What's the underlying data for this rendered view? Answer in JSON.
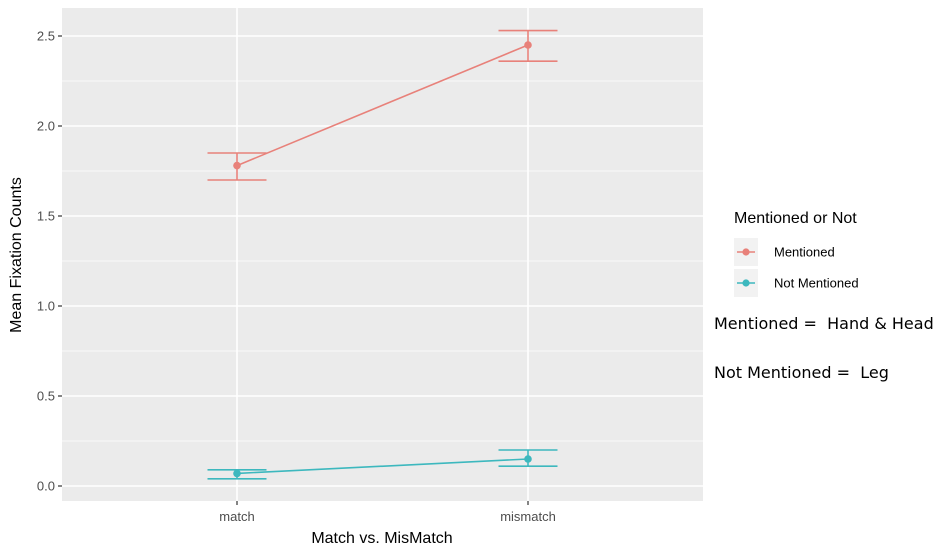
{
  "chart_data": {
    "type": "line",
    "title": "",
    "xlabel": "Match vs. MisMatch",
    "ylabel": "Mean Fixation Counts",
    "categories": [
      "match",
      "mismatch"
    ],
    "ylim": [
      -0.03,
      2.63
    ],
    "yticks": [
      0.0,
      0.5,
      1.0,
      1.5,
      2.0,
      2.5
    ],
    "ytick_labels": [
      "0.0",
      "0.5",
      "1.0",
      "1.5",
      "2.0",
      "2.5"
    ],
    "grid": true,
    "legend": {
      "title": "Mentioned or Not",
      "position": "right",
      "entries": [
        "Mentioned",
        "Not Mentioned"
      ]
    },
    "series": [
      {
        "name": "Mentioned",
        "color": "#E8817A",
        "values": [
          1.78,
          2.45
        ],
        "error_upper": [
          1.85,
          2.53
        ],
        "error_lower": [
          1.7,
          2.36
        ]
      },
      {
        "name": "Not Mentioned",
        "color": "#3DB8BE",
        "values": [
          0.07,
          0.15
        ],
        "error_upper": [
          0.09,
          0.2
        ],
        "error_lower": [
          0.04,
          0.11
        ]
      }
    ],
    "annotations": [
      "Mentioned =  Hand & Head",
      "Not Mentioned =  Leg"
    ]
  },
  "colors": {
    "panel_background": "#EBEBEB",
    "grid": "#FFFFFF"
  }
}
